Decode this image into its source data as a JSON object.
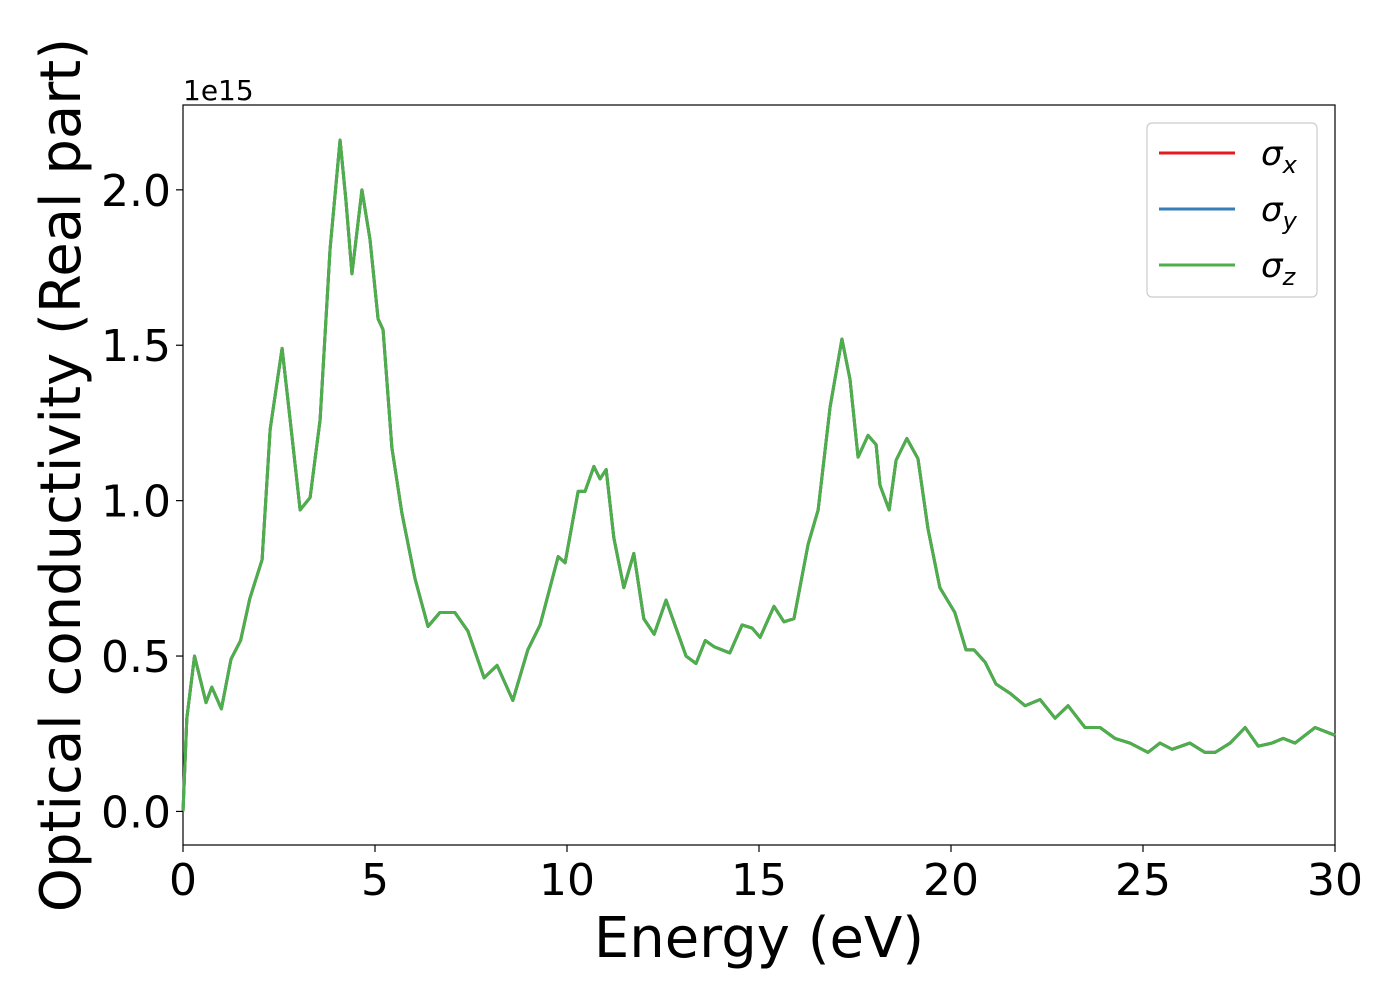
{
  "chart_data": {
    "type": "line",
    "xlabel": "Energy (eV)",
    "ylabel": "Optical conductivity (Real part)",
    "y_offset_label": "1e15",
    "x": [
      0,
      0.1,
      0.3,
      0.6,
      0.75,
      1.0,
      1.25,
      1.5,
      1.74,
      2.06,
      2.27,
      2.58,
      2.79,
      3.05,
      3.31,
      3.57,
      3.83,
      4.09,
      4.24,
      4.4,
      4.66,
      4.87,
      5.08,
      5.21,
      5.44,
      5.7,
      6.04,
      6.38,
      6.69,
      7.08,
      7.42,
      7.84,
      8.18,
      8.59,
      8.98,
      9.3,
      9.77,
      9.95,
      10.29,
      10.47,
      10.7,
      10.86,
      11.02,
      11.22,
      11.48,
      11.74,
      12.0,
      12.27,
      12.58,
      12.84,
      13.1,
      13.36,
      13.6,
      13.83,
      14.24,
      14.56,
      14.82,
      15.03,
      15.39,
      15.65,
      15.91,
      16.28,
      16.54,
      16.85,
      17.16,
      17.37,
      17.58,
      17.84,
      18.05,
      18.15,
      18.39,
      18.57,
      18.85,
      19.14,
      19.4,
      19.71,
      20.1,
      20.39,
      20.6,
      20.89,
      21.17,
      21.54,
      21.93,
      22.32,
      22.71,
      23.05,
      23.49,
      23.88,
      24.27,
      24.66,
      25.13,
      25.44,
      25.76,
      26.22,
      26.61,
      26.88,
      27.27,
      27.66,
      28.0,
      28.36,
      28.65,
      28.96,
      29.48,
      30.0
    ],
    "series": [
      {
        "name": "σx",
        "color": "#e41a1c",
        "values": [
          0,
          0.3,
          0.5,
          0.35,
          0.4,
          0.33,
          0.49,
          0.55,
          0.685,
          0.81,
          1.23,
          1.49,
          1.26,
          0.97,
          1.01,
          1.26,
          1.81,
          2.16,
          1.97,
          1.73,
          2.0,
          1.84,
          1.585,
          1.55,
          1.17,
          0.96,
          0.75,
          0.595,
          0.64,
          0.64,
          0.58,
          0.43,
          0.47,
          0.357,
          0.52,
          0.6,
          0.82,
          0.8,
          1.03,
          1.03,
          1.11,
          1.07,
          1.1,
          0.88,
          0.72,
          0.83,
          0.62,
          0.57,
          0.68,
          0.59,
          0.5,
          0.476,
          0.55,
          0.53,
          0.51,
          0.6,
          0.59,
          0.56,
          0.66,
          0.61,
          0.62,
          0.86,
          0.97,
          1.3,
          1.52,
          1.39,
          1.14,
          1.21,
          1.18,
          1.05,
          0.97,
          1.13,
          1.2,
          1.135,
          0.91,
          0.72,
          0.64,
          0.52,
          0.52,
          0.48,
          0.41,
          0.38,
          0.34,
          0.36,
          0.3,
          0.34,
          0.27,
          0.27,
          0.235,
          0.22,
          0.19,
          0.22,
          0.2,
          0.22,
          0.19,
          0.19,
          0.22,
          0.27,
          0.21,
          0.22,
          0.235,
          0.22,
          0.27,
          0.245
        ]
      },
      {
        "name": "σy",
        "color": "#377eb8",
        "values": [
          0,
          0.3,
          0.5,
          0.35,
          0.4,
          0.33,
          0.49,
          0.55,
          0.685,
          0.81,
          1.23,
          1.49,
          1.26,
          0.97,
          1.01,
          1.26,
          1.81,
          2.16,
          1.97,
          1.73,
          2.0,
          1.84,
          1.585,
          1.55,
          1.17,
          0.96,
          0.75,
          0.595,
          0.64,
          0.64,
          0.58,
          0.43,
          0.47,
          0.357,
          0.52,
          0.6,
          0.82,
          0.8,
          1.03,
          1.03,
          1.11,
          1.07,
          1.1,
          0.88,
          0.72,
          0.83,
          0.62,
          0.57,
          0.68,
          0.59,
          0.5,
          0.476,
          0.55,
          0.53,
          0.51,
          0.6,
          0.59,
          0.56,
          0.66,
          0.61,
          0.62,
          0.86,
          0.97,
          1.3,
          1.52,
          1.39,
          1.14,
          1.21,
          1.18,
          1.05,
          0.97,
          1.13,
          1.2,
          1.135,
          0.91,
          0.72,
          0.64,
          0.52,
          0.52,
          0.48,
          0.41,
          0.38,
          0.34,
          0.36,
          0.3,
          0.34,
          0.27,
          0.27,
          0.235,
          0.22,
          0.19,
          0.22,
          0.2,
          0.22,
          0.19,
          0.19,
          0.22,
          0.27,
          0.21,
          0.22,
          0.235,
          0.22,
          0.27,
          0.245
        ]
      },
      {
        "name": "σz",
        "color": "#4daf4a",
        "values": [
          0,
          0.3,
          0.5,
          0.35,
          0.4,
          0.33,
          0.49,
          0.55,
          0.685,
          0.81,
          1.23,
          1.49,
          1.26,
          0.97,
          1.01,
          1.26,
          1.81,
          2.16,
          1.97,
          1.73,
          2.0,
          1.84,
          1.585,
          1.55,
          1.17,
          0.96,
          0.75,
          0.595,
          0.64,
          0.64,
          0.58,
          0.43,
          0.47,
          0.357,
          0.52,
          0.6,
          0.82,
          0.8,
          1.03,
          1.03,
          1.11,
          1.07,
          1.1,
          0.88,
          0.72,
          0.83,
          0.62,
          0.57,
          0.68,
          0.59,
          0.5,
          0.476,
          0.55,
          0.53,
          0.51,
          0.6,
          0.59,
          0.56,
          0.66,
          0.61,
          0.62,
          0.86,
          0.97,
          1.3,
          1.52,
          1.39,
          1.14,
          1.21,
          1.18,
          1.05,
          0.97,
          1.13,
          1.2,
          1.135,
          0.91,
          0.72,
          0.64,
          0.52,
          0.52,
          0.48,
          0.41,
          0.38,
          0.34,
          0.36,
          0.3,
          0.34,
          0.27,
          0.27,
          0.235,
          0.22,
          0.19,
          0.22,
          0.2,
          0.22,
          0.19,
          0.19,
          0.22,
          0.27,
          0.21,
          0.22,
          0.235,
          0.22,
          0.27,
          0.245
        ]
      }
    ],
    "xlim": [
      0,
      30
    ],
    "xticks": [
      0,
      5,
      10,
      15,
      20,
      25,
      30
    ],
    "ylim": [
      -0.108,
      2.273
    ],
    "yticks": [
      {
        "value": 0,
        "label": "0.0"
      },
      0.5,
      {
        "value": 1,
        "label": "1.0"
      },
      1.5,
      {
        "value": 2,
        "label": "2.0"
      }
    ],
    "grid": false,
    "legend": "upper right"
  }
}
